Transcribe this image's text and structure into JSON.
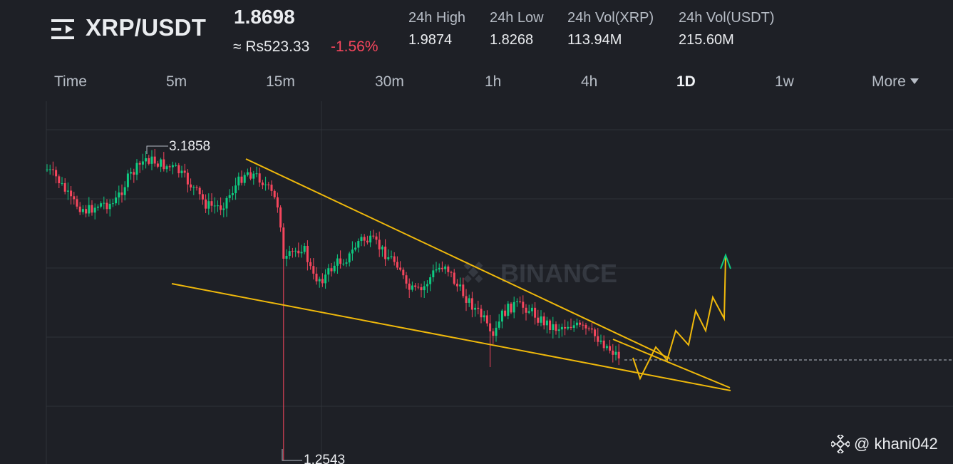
{
  "header": {
    "pair": "XRP/USDT",
    "price": "1.8698",
    "fiat_price": "≈ Rs523.33",
    "change": "-1.56%",
    "stats": [
      {
        "label": "24h High",
        "value": "1.9874"
      },
      {
        "label": "24h Low",
        "value": "1.8268"
      },
      {
        "label": "24h Vol(XRP)",
        "value": "113.94M"
      },
      {
        "label": "24h Vol(USDT)",
        "value": "215.60M"
      }
    ]
  },
  "tabs": [
    {
      "label": "Time",
      "active": false
    },
    {
      "label": "5m",
      "active": false
    },
    {
      "label": "15m",
      "active": false
    },
    {
      "label": "30m",
      "active": false
    },
    {
      "label": "1h",
      "active": false
    },
    {
      "label": "4h",
      "active": false
    },
    {
      "label": "1D",
      "active": true
    },
    {
      "label": "1w",
      "active": false
    },
    {
      "label": "More",
      "active": false
    }
  ],
  "chart_data": {
    "type": "candlestick",
    "high_label": "3.1858",
    "low_label": "1.2543",
    "watermark": "BINANCE",
    "colors": {
      "up": "#0ecb81",
      "down": "#f6465d",
      "trendline": "#f0b90b",
      "grid": "#2f3238"
    }
  },
  "credit": "@ khani042",
  "icons": {
    "menu": "menu-list-icon",
    "logo": "binance-diamond-icon"
  }
}
